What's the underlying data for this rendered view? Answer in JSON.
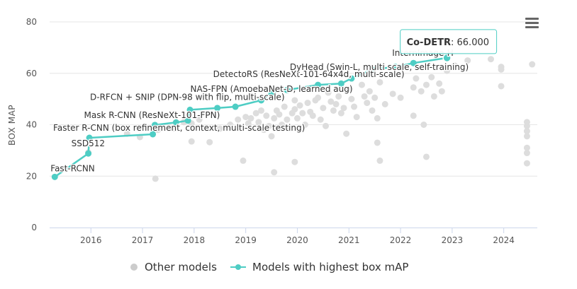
{
  "chart_data": {
    "type": "scatter",
    "ylabel": "BOX MAP",
    "xlabel": "",
    "xlim": [
      2015.2,
      2024.65
    ],
    "ylim": [
      0,
      80
    ],
    "x_ticks": [
      2016,
      2017,
      2018,
      2019,
      2020,
      2021,
      2022,
      2023,
      2024
    ],
    "y_ticks": [
      0,
      20,
      40,
      60,
      80
    ],
    "grid": true,
    "legend_position": "bottom-center",
    "colors": {
      "other": "#dddddd",
      "sota": "#4ecdc4",
      "grid": "#e6e6e6",
      "axis": "#ccd6eb"
    },
    "series": [
      {
        "name": "Other models",
        "marker": "circle",
        "points": [
          [
            2015.95,
            29.2
          ],
          [
            2016.7,
            36.5
          ],
          [
            2016.95,
            35.2
          ],
          [
            2017.25,
            19.0
          ],
          [
            2017.3,
            38.0
          ],
          [
            2017.6,
            38.5
          ],
          [
            2017.8,
            41.0
          ],
          [
            2017.95,
            33.5
          ],
          [
            2017.95,
            40.5
          ],
          [
            2018.1,
            42.0
          ],
          [
            2018.3,
            33.2
          ],
          [
            2018.5,
            38.5
          ],
          [
            2018.7,
            40.0
          ],
          [
            2018.85,
            42.0
          ],
          [
            2018.95,
            26.0
          ],
          [
            2019.0,
            43.0
          ],
          [
            2019.05,
            40.5
          ],
          [
            2019.1,
            42.5
          ],
          [
            2019.2,
            44.5
          ],
          [
            2019.25,
            41.0
          ],
          [
            2019.3,
            45.5
          ],
          [
            2019.35,
            38.0
          ],
          [
            2019.4,
            43.5
          ],
          [
            2019.45,
            39.5
          ],
          [
            2019.5,
            35.5
          ],
          [
            2019.55,
            21.5
          ],
          [
            2019.55,
            42.5
          ],
          [
            2019.6,
            45.5
          ],
          [
            2019.65,
            44.0
          ],
          [
            2019.7,
            40.0
          ],
          [
            2019.75,
            47.0
          ],
          [
            2019.8,
            42.0
          ],
          [
            2019.85,
            38.5
          ],
          [
            2019.9,
            44.5
          ],
          [
            2019.95,
            46.0
          ],
          [
            2019.95,
            49.5
          ],
          [
            2019.95,
            25.5
          ],
          [
            2020.0,
            42.5
          ],
          [
            2020.05,
            47.5
          ],
          [
            2020.1,
            44.5
          ],
          [
            2020.15,
            40.0
          ],
          [
            2020.2,
            48.5
          ],
          [
            2020.25,
            45.0
          ],
          [
            2020.3,
            43.5
          ],
          [
            2020.35,
            49.5
          ],
          [
            2020.4,
            50.5
          ],
          [
            2020.45,
            42.0
          ],
          [
            2020.5,
            46.5
          ],
          [
            2020.55,
            39.5
          ],
          [
            2020.6,
            52.5
          ],
          [
            2020.65,
            49.0
          ],
          [
            2020.7,
            45.5
          ],
          [
            2020.75,
            48.0
          ],
          [
            2020.8,
            51.0
          ],
          [
            2020.85,
            44.5
          ],
          [
            2020.9,
            46.5
          ],
          [
            2020.95,
            36.5
          ],
          [
            2021.0,
            53.5
          ],
          [
            2021.05,
            50.0
          ],
          [
            2021.1,
            47.0
          ],
          [
            2021.15,
            43.0
          ],
          [
            2021.25,
            55.5
          ],
          [
            2021.3,
            51.0
          ],
          [
            2021.35,
            48.5
          ],
          [
            2021.4,
            53.0
          ],
          [
            2021.45,
            45.5
          ],
          [
            2021.5,
            50.5
          ],
          [
            2021.55,
            42.5
          ],
          [
            2021.55,
            33.0
          ],
          [
            2021.6,
            56.5
          ],
          [
            2021.6,
            26.0
          ],
          [
            2021.7,
            48.0
          ],
          [
            2021.85,
            52.0
          ],
          [
            2022.0,
            50.5
          ],
          [
            2022.25,
            54.5
          ],
          [
            2022.25,
            43.5
          ],
          [
            2022.3,
            58.0
          ],
          [
            2022.4,
            53.0
          ],
          [
            2022.45,
            40.0
          ],
          [
            2022.5,
            55.5
          ],
          [
            2022.5,
            27.5
          ],
          [
            2022.6,
            58.5
          ],
          [
            2022.65,
            51.0
          ],
          [
            2022.75,
            56.0
          ],
          [
            2022.8,
            53.0
          ],
          [
            2022.9,
            61.0
          ],
          [
            2023.05,
            63.0
          ],
          [
            2023.3,
            65.0
          ],
          [
            2023.75,
            65.5
          ],
          [
            2023.95,
            61.5
          ],
          [
            2023.95,
            55.0
          ],
          [
            2023.95,
            62.5
          ],
          [
            2024.45,
            41.0
          ],
          [
            2024.45,
            39.5
          ],
          [
            2024.45,
            37.5
          ],
          [
            2024.45,
            35.5
          ],
          [
            2024.45,
            31.0
          ],
          [
            2024.45,
            29.0
          ],
          [
            2024.45,
            25.0
          ],
          [
            2024.55,
            63.5
          ]
        ]
      },
      {
        "name": "Models with highest box mAP",
        "marker": "circle",
        "points": [
          [
            2015.3,
            19.7
          ],
          [
            2015.95,
            28.8
          ],
          [
            2015.97,
            34.9
          ],
          [
            2017.2,
            36.3
          ],
          [
            2017.24,
            39.9
          ],
          [
            2017.65,
            40.9
          ],
          [
            2017.88,
            41.6
          ],
          [
            2017.92,
            45.8
          ],
          [
            2018.45,
            46.5
          ],
          [
            2018.8,
            47.0
          ],
          [
            2019.3,
            49.5
          ],
          [
            2019.5,
            52.5
          ],
          [
            2019.8,
            53.5
          ],
          [
            2020.4,
            55.5
          ],
          [
            2020.85,
            56.0
          ],
          [
            2021.05,
            58.0
          ],
          [
            2021.45,
            61.5
          ],
          [
            2021.9,
            62.5
          ],
          [
            2022.25,
            64.0
          ],
          [
            2022.9,
            66.0
          ]
        ]
      }
    ],
    "annotations": [
      {
        "label": "Fast-RCNN",
        "x": 2015.3,
        "y": 19.7
      },
      {
        "label": "SSD512",
        "x": 2015.95,
        "y": 28.8
      },
      {
        "label": "Faster R-CNN (box refinement, context, multi-scale testing)",
        "x": 2015.97,
        "y": 34.9
      },
      {
        "label": "Mask R-CNN (ResNeXt-101-FPN)",
        "x": 2017.24,
        "y": 39.9
      },
      {
        "label": "D-RFCN + SNIP (DPN-98 with flip, multi-scale)",
        "x": 2017.92,
        "y": 45.8
      },
      {
        "label": "NAS-FPN (AmoebaNet-D, learned aug)",
        "x": 2019.3,
        "y": 49.5
      },
      {
        "label": "DetectoRS (ResNeXt-101-64x4d, multi-scale)",
        "x": 2020.4,
        "y": 55.5
      },
      {
        "label": "DyHead (Swin-L, multi scale, self-training)",
        "x": 2021.05,
        "y": 58.0
      },
      {
        "label": "InternImage-H",
        "x": 2022.25,
        "y": 64.0
      }
    ],
    "tooltip": {
      "name": "Co-DETR",
      "separator": ": ",
      "value": "66.000",
      "x": 2022.9,
      "y": 66.0
    }
  },
  "legend": {
    "items": [
      {
        "label": "Other models",
        "color": "#cccccc"
      },
      {
        "label": "Models with highest box mAP",
        "color": "#4ecdc4"
      }
    ]
  },
  "menu": {
    "icon": "hamburger-menu-icon"
  }
}
